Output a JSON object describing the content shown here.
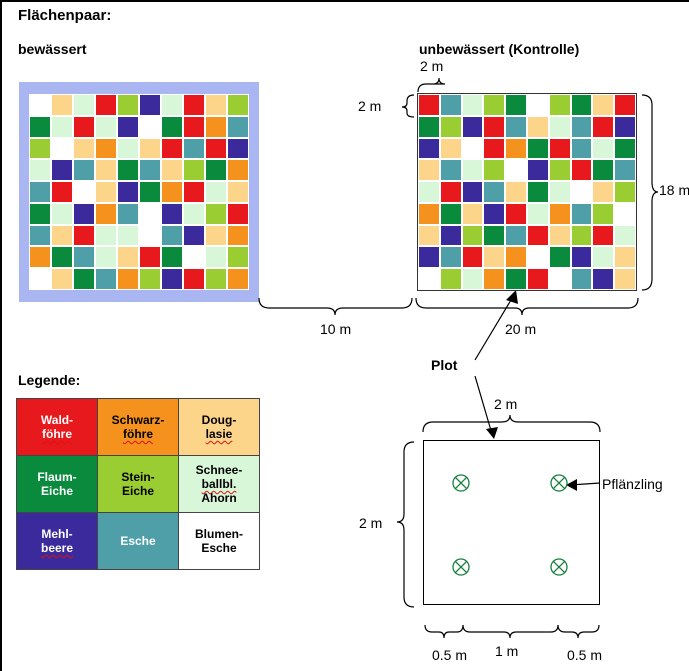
{
  "labels": {
    "title": "Flächenpaar:",
    "irrigated": "bewässert",
    "control": "unbewässert (Kontrolle)",
    "cell_width": "2 m",
    "cell_height": "2 m",
    "field_height": "18 m",
    "gap": "10 m",
    "field_width": "20 m",
    "plot": "Plot",
    "plot_width": "2 m",
    "plot_height": "2 m",
    "seedling": "Pflänzling",
    "spacing_left": "0.5 m",
    "spacing_mid": "1 m",
    "spacing_right": "0.5 m",
    "legend_title": "Legende:"
  },
  "colors": {
    "waldfoehre": "#e8191c",
    "schwarzfoehre": "#f5921e",
    "douglasie": "#fcd58a",
    "flaumeiche": "#0a8a3c",
    "steineiche": "#9acd32",
    "schneeball": "#d8f7d8",
    "mehlbeere": "#3a2a9c",
    "esche": "#4f9fa8",
    "blumenesche": "#ffffff",
    "irrigated_background": "#a9b6f2"
  },
  "legend": [
    {
      "line1": "Wald-",
      "line2": "föhre",
      "line3": "",
      "color_key": "waldfoehre",
      "text_color": "#ffffff",
      "squiggle": 2
    },
    {
      "line1": "Schwarz-",
      "line2": "föhre",
      "line3": "",
      "color_key": "schwarzfoehre",
      "text_color": "#000000",
      "squiggle": 2
    },
    {
      "line1": "Doug-",
      "line2": "lasie",
      "line3": "",
      "color_key": "douglasie",
      "text_color": "#000000",
      "squiggle": 2
    },
    {
      "line1": "Flaum-",
      "line2": "Eiche",
      "line3": "",
      "color_key": "flaumeiche",
      "text_color": "#ffffff",
      "squiggle": 0
    },
    {
      "line1": "Stein-",
      "line2": "Eiche",
      "line3": "",
      "color_key": "steineiche",
      "text_color": "#000000",
      "squiggle": 0
    },
    {
      "line1": "Schnee-",
      "line2": "ballbl.",
      "line3": "Ahorn",
      "color_key": "schneeball",
      "text_color": "#000000",
      "squiggle": 2
    },
    {
      "line1": "Mehl-",
      "line2": "beere",
      "line3": "",
      "color_key": "mehlbeere",
      "text_color": "#ffffff",
      "squiggle": 2
    },
    {
      "line1": "Esche",
      "line2": "",
      "line3": "",
      "color_key": "esche",
      "text_color": "#ffffff",
      "squiggle": 0
    },
    {
      "line1": "Blumen-",
      "line2": "Esche",
      "line3": "",
      "color_key": "blumenesche",
      "text_color": "#000000",
      "squiggle": 0
    }
  ],
  "grid_left": [
    [
      "W",
      "D",
      "A",
      "R",
      "L",
      "N",
      "C",
      "R",
      "D",
      "L"
    ],
    [
      "F",
      "A",
      "R",
      "C",
      "N",
      "W",
      "F",
      "R",
      "S",
      "E"
    ],
    [
      "L",
      "W",
      "D",
      "S",
      "C",
      "D",
      "R",
      "E",
      "R",
      "N"
    ],
    [
      "C",
      "N",
      "E",
      "D",
      "F",
      "E",
      "D",
      "L",
      "F",
      "S"
    ],
    [
      "E",
      "R",
      "W",
      "D",
      "N",
      "F",
      "S",
      "R",
      "C",
      "D"
    ],
    [
      "F",
      "C",
      "N",
      "S",
      "E",
      "W",
      "N",
      "A",
      "L",
      "R"
    ],
    [
      "E",
      "D",
      "R",
      "C",
      "A",
      "W",
      "E",
      "N",
      "D",
      "S"
    ],
    [
      "S",
      "F",
      "E",
      "A",
      "D",
      "R",
      "F",
      "W",
      "C",
      "L"
    ],
    [
      "W",
      "D",
      "F",
      "E",
      "S",
      "L",
      "N",
      "R",
      "L",
      "S"
    ]
  ],
  "grid_right": [
    [
      "R",
      "E",
      "C",
      "L",
      "F",
      "W",
      "L",
      "F",
      "D",
      "R"
    ],
    [
      "F",
      "L",
      "N",
      "R",
      "E",
      "D",
      "C",
      "E",
      "R",
      "N"
    ],
    [
      "N",
      "D",
      "W",
      "R",
      "S",
      "F",
      "R",
      "E",
      "C",
      "F"
    ],
    [
      "D",
      "E",
      "C",
      "L",
      "W",
      "N",
      "L",
      "R",
      "F",
      "E"
    ],
    [
      "C",
      "R",
      "N",
      "E",
      "D",
      "F",
      "C",
      "W",
      "D",
      "L"
    ],
    [
      "S",
      "F",
      "D",
      "N",
      "R",
      "C",
      "S",
      "E",
      "L",
      "W"
    ],
    [
      "D",
      "N",
      "L",
      "F",
      "E",
      "R",
      "D",
      "L",
      "R",
      "C"
    ],
    [
      "N",
      "E",
      "R",
      "D",
      "S",
      "W",
      "F",
      "N",
      "C",
      "D"
    ],
    [
      "W",
      "L",
      "C",
      "S",
      "F",
      "R",
      "W",
      "E",
      "N",
      "D"
    ]
  ],
  "code_map": {
    "R": "waldfoehre",
    "S": "schwarzfoehre",
    "D": "douglasie",
    "F": "flaumeiche",
    "L": "steineiche",
    "C": "schneeball",
    "N": "mehlbeere",
    "E": "esche",
    "W": "blumenesche",
    "A": "schneeball"
  }
}
